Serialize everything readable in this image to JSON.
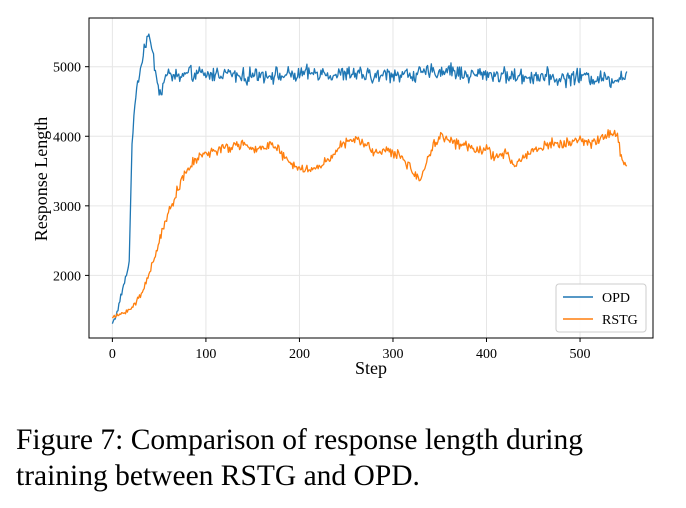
{
  "chart_data": {
    "type": "line",
    "xlabel": "Step",
    "ylabel": "Response Length",
    "xlim": [
      -25,
      578
    ],
    "ylim": [
      1100,
      5700
    ],
    "xticks": [
      0,
      100,
      200,
      300,
      400,
      500
    ],
    "yticks": [
      2000,
      3000,
      4000,
      5000
    ],
    "grid": true,
    "legend_position": "lower-right",
    "series": [
      {
        "name": "OPD",
        "color": "#1f77b4",
        "x": [
          0,
          5,
          10,
          15,
          18,
          21,
          25,
          30,
          35,
          38,
          42,
          47,
          52,
          55,
          60,
          70,
          80,
          90,
          100,
          120,
          140,
          160,
          180,
          200,
          220,
          240,
          260,
          280,
          300,
          320,
          340,
          360,
          380,
          400,
          420,
          440,
          460,
          480,
          500,
          520,
          540,
          550
        ],
        "y": [
          1310,
          1460,
          1750,
          2000,
          2200,
          3900,
          4600,
          5000,
          5300,
          5480,
          5250,
          4900,
          4550,
          4800,
          4900,
          4850,
          4880,
          4900,
          4870,
          4920,
          4850,
          4900,
          4870,
          4880,
          4920,
          4880,
          4900,
          4850,
          4900,
          4880,
          4920,
          4950,
          4880,
          4900,
          4870,
          4850,
          4880,
          4820,
          4870,
          4830,
          4820,
          4920
        ],
        "noise": 140
      },
      {
        "name": "RSTG",
        "color": "#ff7f0e",
        "x": [
          0,
          10,
          20,
          30,
          40,
          50,
          60,
          70,
          80,
          90,
          100,
          110,
          120,
          130,
          140,
          150,
          160,
          170,
          180,
          190,
          200,
          210,
          220,
          230,
          240,
          250,
          260,
          270,
          280,
          290,
          300,
          310,
          320,
          330,
          340,
          350,
          360,
          370,
          380,
          390,
          400,
          410,
          420,
          430,
          440,
          450,
          460,
          470,
          480,
          490,
          500,
          510,
          520,
          530,
          540,
          545,
          550
        ],
        "y": [
          1390,
          1450,
          1520,
          1700,
          2050,
          2500,
          2900,
          3250,
          3500,
          3680,
          3750,
          3800,
          3820,
          3850,
          3900,
          3780,
          3850,
          3900,
          3750,
          3600,
          3550,
          3500,
          3550,
          3650,
          3820,
          3900,
          3950,
          3900,
          3750,
          3820,
          3750,
          3700,
          3500,
          3380,
          3800,
          4000,
          3950,
          3880,
          3850,
          3820,
          3800,
          3700,
          3750,
          3580,
          3700,
          3800,
          3850,
          3900,
          3880,
          3920,
          3950,
          3900,
          3950,
          4050,
          4000,
          3650,
          3600
        ],
        "noise": 90
      }
    ]
  },
  "caption": "Figure 7: Comparison of response length during training between RSTG and OPD."
}
